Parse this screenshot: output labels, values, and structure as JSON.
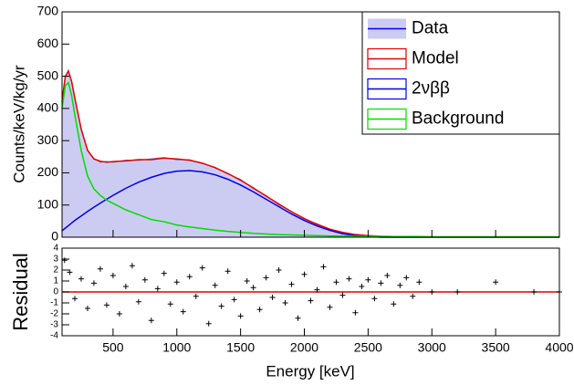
{
  "chart_data": [
    {
      "type": "line",
      "y_label": "Counts/keV/kg/yr",
      "legend": "top-right",
      "x": [
        100,
        125,
        150,
        175,
        200,
        250,
        300,
        350,
        400,
        450,
        500,
        600,
        700,
        800,
        900,
        1000,
        1100,
        1200,
        1300,
        1400,
        1500,
        1600,
        1700,
        1800,
        1900,
        2000,
        2100,
        2200,
        2300,
        2400,
        2500,
        2600,
        2700,
        2800,
        3000,
        3500,
        4000
      ],
      "series": [
        {
          "name": "Data",
          "color": "#ccccf2",
          "fill": true,
          "values": [
            430,
            500,
            520,
            480,
            430,
            340,
            268,
            245,
            232,
            236,
            232,
            240,
            238,
            244,
            248,
            240,
            241,
            228,
            218,
            196,
            180,
            150,
            130,
            100,
            80,
            56,
            42,
            24,
            16,
            8,
            5,
            3,
            2,
            2,
            1,
            1,
            1
          ]
        },
        {
          "name": "Model",
          "color": "#e00000",
          "values": [
            420,
            498,
            516,
            484,
            432,
            336,
            270,
            243,
            236,
            233,
            235,
            237,
            241,
            241,
            246,
            243,
            239,
            230,
            216,
            198,
            177,
            153,
            128,
            103,
            79,
            58,
            40,
            25,
            15,
            8,
            5,
            3,
            2,
            2,
            1,
            1,
            1
          ]
        },
        {
          "name": "2νββ",
          "color": "#0000e6",
          "values": [
            20,
            28,
            36,
            44,
            52,
            66,
            80,
            93,
            106,
            118,
            130,
            152,
            171,
            186,
            198,
            205,
            207,
            203,
            194,
            180,
            162,
            141,
            118,
            95,
            72,
            52,
            35,
            21,
            11,
            5,
            2,
            0,
            0,
            0,
            0,
            0,
            0
          ]
        },
        {
          "name": "Background",
          "color": "#00dd00",
          "values": [
            400,
            470,
            480,
            440,
            380,
            270,
            190,
            150,
            130,
            115,
            105,
            85,
            70,
            55,
            48,
            38,
            32,
            27,
            22,
            18,
            15,
            12,
            10,
            8,
            7,
            6,
            5,
            4,
            4,
            3,
            3,
            3,
            2,
            2,
            1,
            1,
            1
          ]
        }
      ],
      "xlim": [
        100,
        4000
      ],
      "xticks": [
        500,
        1000,
        1500,
        2000,
        2500,
        3000,
        3500,
        4000
      ],
      "ylim": [
        0,
        700
      ],
      "yticks": [
        0,
        100,
        200,
        300,
        400,
        500,
        600,
        700
      ]
    },
    {
      "type": "scatter",
      "x_label": "Energy [keV]",
      "y_label": "Residual",
      "color": "#000000",
      "x": [
        120,
        160,
        200,
        250,
        300,
        350,
        400,
        450,
        500,
        550,
        600,
        650,
        700,
        750,
        800,
        850,
        900,
        950,
        1000,
        1050,
        1100,
        1150,
        1200,
        1250,
        1300,
        1350,
        1400,
        1450,
        1500,
        1550,
        1600,
        1650,
        1700,
        1750,
        1800,
        1850,
        1900,
        1950,
        2000,
        2050,
        2100,
        2150,
        2200,
        2250,
        2300,
        2350,
        2400,
        2450,
        2500,
        2550,
        2600,
        2650,
        2700,
        2750,
        2800,
        2850,
        2900,
        3000,
        3200,
        3500,
        3800,
        4000
      ],
      "values": [
        2.9,
        1.8,
        -0.6,
        1.2,
        -1.5,
        0.8,
        2.1,
        -1.2,
        1.5,
        -2.0,
        0.5,
        2.4,
        -0.9,
        1.1,
        -2.6,
        0.3,
        1.7,
        -1.1,
        0.9,
        -1.8,
        1.4,
        -0.4,
        2.2,
        -2.9,
        0.6,
        -1.3,
        1.9,
        -0.7,
        -2.2,
        1.0,
        0.4,
        -1.6,
        1.3,
        -0.5,
        2.0,
        -1.0,
        0.7,
        -2.4,
        1.6,
        -0.8,
        0.2,
        2.3,
        -1.4,
        0.9,
        -0.3,
        1.2,
        -1.9,
        0.5,
        1.1,
        -0.6,
        0.8,
        1.5,
        -1.1,
        0.6,
        1.3,
        -0.4,
        0.9,
        0,
        0,
        0.9,
        0,
        0
      ],
      "reference_color": "#e00000",
      "xlim": [
        100,
        4000
      ],
      "xticks": [
        500,
        1000,
        1500,
        2000,
        2500,
        3000,
        3500,
        4000
      ],
      "ylim": [
        -4,
        4
      ],
      "yticks": [
        -4,
        -3,
        -2,
        -1,
        0,
        1,
        2,
        3,
        4
      ]
    }
  ]
}
